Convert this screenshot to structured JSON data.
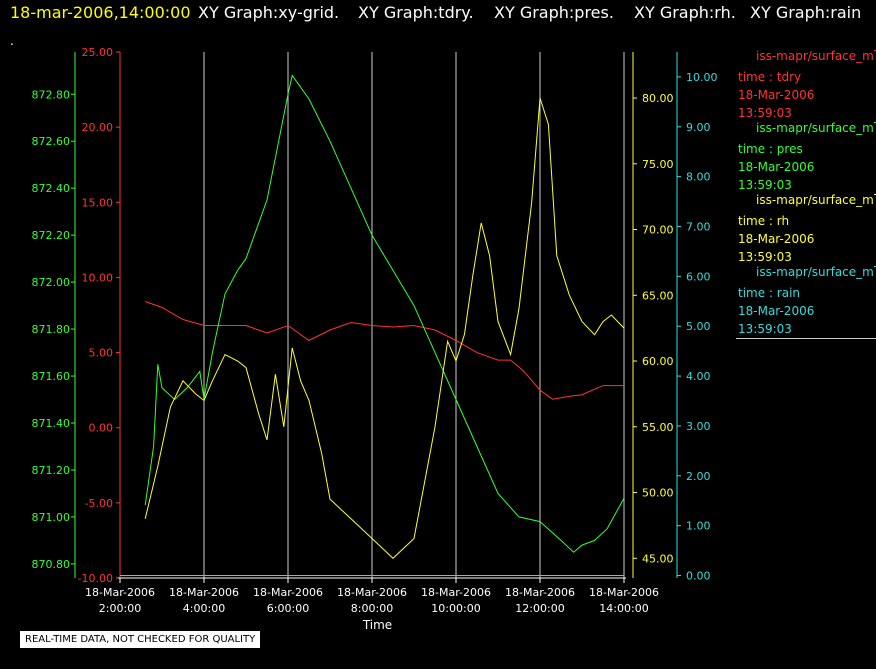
{
  "header": {
    "timestamp": "18-mar-2006,14:00:00",
    "graph_titles": [
      "XY Graph:xy-grid.",
      "XY Graph:tdry.",
      "XY Graph:pres.",
      "XY Graph:rh.",
      "XY Graph:rain"
    ]
  },
  "dot": ".",
  "quality_note": "REAL-TIME DATA, NOT CHECKED FOR QUALITY",
  "legend": [
    {
      "source": "iss-mapr/surface_m",
      "label": "time : tdry",
      "date": "18-Mar-2006",
      "time": "13:59:03",
      "color": "#ff3333"
    },
    {
      "source": "iss-mapr/surface_m",
      "label": "time : pres",
      "date": "18-Mar-2006",
      "time": "13:59:03",
      "color": "#33ff33"
    },
    {
      "source": "iss-mapr/surface_m",
      "label": "time : rh",
      "date": "18-Mar-2006",
      "time": "13:59:03",
      "color": "#ffff33"
    },
    {
      "source": "iss-mapr/surface_m",
      "label": "time : rain",
      "date": "18-Mar-2006",
      "time": "13:59:03",
      "color": "#33dddd"
    }
  ],
  "chart_data": {
    "type": "line",
    "xlabel": "Time",
    "x_ticks": [
      {
        "date": "18-Mar-2006",
        "time": "2:00:00",
        "hour": 2
      },
      {
        "date": "18-Mar-2006",
        "time": "4:00:00",
        "hour": 4
      },
      {
        "date": "18-Mar-2006",
        "time": "6:00:00",
        "hour": 6
      },
      {
        "date": "18-Mar-2006",
        "time": "8:00:00",
        "hour": 8
      },
      {
        "date": "18-Mar-2006",
        "time": "10:00:00",
        "hour": 10
      },
      {
        "date": "18-Mar-2006",
        "time": "12:00:00",
        "hour": 12
      },
      {
        "date": "18-Mar-2006",
        "time": "14:00:00",
        "hour": 14
      }
    ],
    "xlim": [
      2,
      14
    ],
    "grid_x": true,
    "axes": {
      "pres": {
        "color": "#33ff33",
        "ylim": [
          870.74,
          872.98
        ],
        "ticks": [
          "870.80",
          "871.00",
          "871.20",
          "871.40",
          "871.60",
          "871.80",
          "872.00",
          "872.20",
          "872.40",
          "872.60",
          "872.80"
        ]
      },
      "tdry": {
        "color": "#ff3333",
        "ylim": [
          -10,
          25
        ],
        "ticks": [
          "-10.00",
          "-5.00",
          "0.00",
          "5.00",
          "10.00",
          "15.00",
          "20.00",
          "25.00"
        ]
      },
      "rh": {
        "color": "#ffff33",
        "ylim": [
          43.5,
          83.5
        ],
        "ticks": [
          "45.00",
          "50.00",
          "55.00",
          "60.00",
          "65.00",
          "70.00",
          "75.00",
          "80.00"
        ]
      },
      "rain": {
        "color": "#33dddd",
        "ylim": [
          -0.05,
          10.5
        ],
        "ticks": [
          "0.00",
          "1.00",
          "2.00",
          "3.00",
          "4.00",
          "5.00",
          "6.00",
          "7.00",
          "8.00",
          "9.00",
          "10.00"
        ]
      }
    },
    "series": [
      {
        "name": "tdry",
        "axis": "tdry",
        "color": "#ff3333",
        "x": [
          2.6,
          3.0,
          3.5,
          4.0,
          4.5,
          5.0,
          5.5,
          6.0,
          6.5,
          7.0,
          7.5,
          8.0,
          8.5,
          9.0,
          9.5,
          10.0,
          10.5,
          11.0,
          11.3,
          11.6,
          12.0,
          12.3,
          12.7,
          13.0,
          13.5,
          14.0
        ],
        "y": [
          8.4,
          8.0,
          7.2,
          6.8,
          6.8,
          6.8,
          6.3,
          6.8,
          5.8,
          6.5,
          7.0,
          6.8,
          6.7,
          6.8,
          6.5,
          5.8,
          5.0,
          4.5,
          4.5,
          3.8,
          2.5,
          1.9,
          2.1,
          2.2,
          2.8,
          2.8
        ]
      },
      {
        "name": "pres",
        "axis": "pres",
        "color": "#33ff33",
        "x": [
          2.6,
          2.8,
          2.9,
          3.0,
          3.3,
          3.6,
          3.9,
          4.0,
          4.2,
          4.5,
          4.8,
          5.0,
          5.5,
          6.0,
          6.1,
          6.5,
          7.0,
          7.5,
          8.0,
          8.5,
          9.0,
          9.5,
          10.0,
          10.5,
          11.0,
          11.5,
          12.0,
          12.5,
          12.8,
          13.0,
          13.3,
          13.6,
          14.0
        ],
        "y": [
          871.05,
          871.3,
          871.65,
          871.55,
          871.5,
          871.55,
          871.62,
          871.5,
          871.7,
          871.95,
          872.05,
          872.1,
          872.35,
          872.8,
          872.88,
          872.78,
          872.6,
          872.4,
          872.2,
          872.05,
          871.9,
          871.7,
          871.5,
          871.3,
          871.1,
          871.0,
          870.98,
          870.9,
          870.85,
          870.88,
          870.9,
          870.95,
          871.08
        ]
      },
      {
        "name": "rh",
        "axis": "rh",
        "color": "#ffff33",
        "x": [
          2.6,
          2.9,
          3.2,
          3.5,
          3.8,
          4.0,
          4.2,
          4.5,
          4.8,
          5.0,
          5.3,
          5.5,
          5.7,
          5.9,
          6.1,
          6.3,
          6.5,
          6.8,
          7.0,
          7.5,
          8.0,
          8.5,
          9.0,
          9.5,
          9.8,
          10.0,
          10.2,
          10.4,
          10.6,
          10.8,
          11.0,
          11.3,
          11.5,
          11.8,
          12.0,
          12.2,
          12.4,
          12.7,
          13.0,
          13.3,
          13.5,
          13.7,
          14.0
        ],
        "y": [
          48.0,
          52.0,
          56.5,
          58.5,
          57.5,
          57.0,
          58.5,
          60.5,
          60.0,
          59.5,
          56.0,
          54.0,
          59.0,
          55.0,
          61.0,
          58.5,
          57.0,
          53.0,
          49.5,
          48.0,
          46.5,
          45.0,
          46.5,
          55.0,
          61.5,
          60.0,
          62.0,
          66.5,
          70.5,
          68.0,
          63.0,
          60.5,
          64.0,
          72.0,
          80.0,
          78.0,
          68.0,
          65.0,
          63.0,
          62.0,
          63.0,
          63.5,
          62.5
        ]
      },
      {
        "name": "rain",
        "axis": "rain",
        "color": "#33dddd",
        "x": [
          2.0,
          14.0
        ],
        "y": [
          0.0,
          0.0
        ]
      }
    ]
  }
}
